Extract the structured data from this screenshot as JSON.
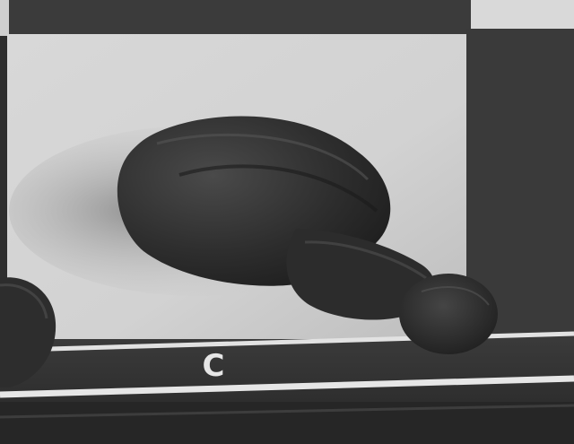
{
  "board": {
    "file_label": "C",
    "colors": {
      "light_square": "#dcdcdc",
      "dark_square": "#3a3a3a",
      "frame": "#2a2a2a",
      "border_line": "#e8e8e8",
      "piece": "#2f2f2f"
    }
  },
  "pieces": [
    {
      "name": "pawn",
      "color": "black",
      "state": "tipped over"
    }
  ]
}
